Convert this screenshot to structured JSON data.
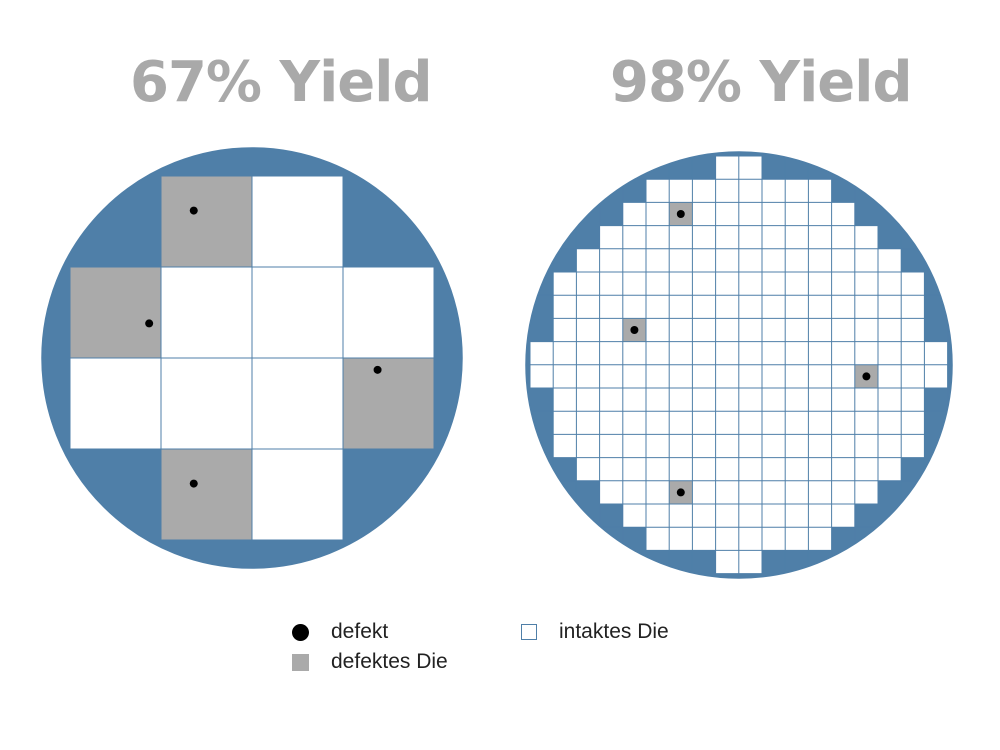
{
  "wafers": [
    {
      "title": "67% Yield",
      "dies_total": 12,
      "dies_defective": 4,
      "grid_columns": 4,
      "grid_rows": 4,
      "defective_dies": [
        [
          1,
          0
        ],
        [
          0,
          1
        ],
        [
          3,
          2
        ],
        [
          1,
          3
        ]
      ]
    },
    {
      "title": "98% Yield",
      "grid_columns": 18,
      "grid_rows": 18,
      "defective_dies": [
        [
          6,
          2
        ],
        [
          4,
          7
        ],
        [
          14,
          9
        ],
        [
          6,
          14
        ]
      ]
    }
  ],
  "legend": {
    "defect": "defekt",
    "defective_die": "defektes Die",
    "intact_die": "intaktes Die"
  },
  "colors": {
    "wafer": "#4f7fa8",
    "grid_line": "#4f7fa8",
    "intact_die": "#ffffff",
    "defective_die": "#aaaaaa",
    "defect": "#000000",
    "title": "#a9a9a9"
  }
}
